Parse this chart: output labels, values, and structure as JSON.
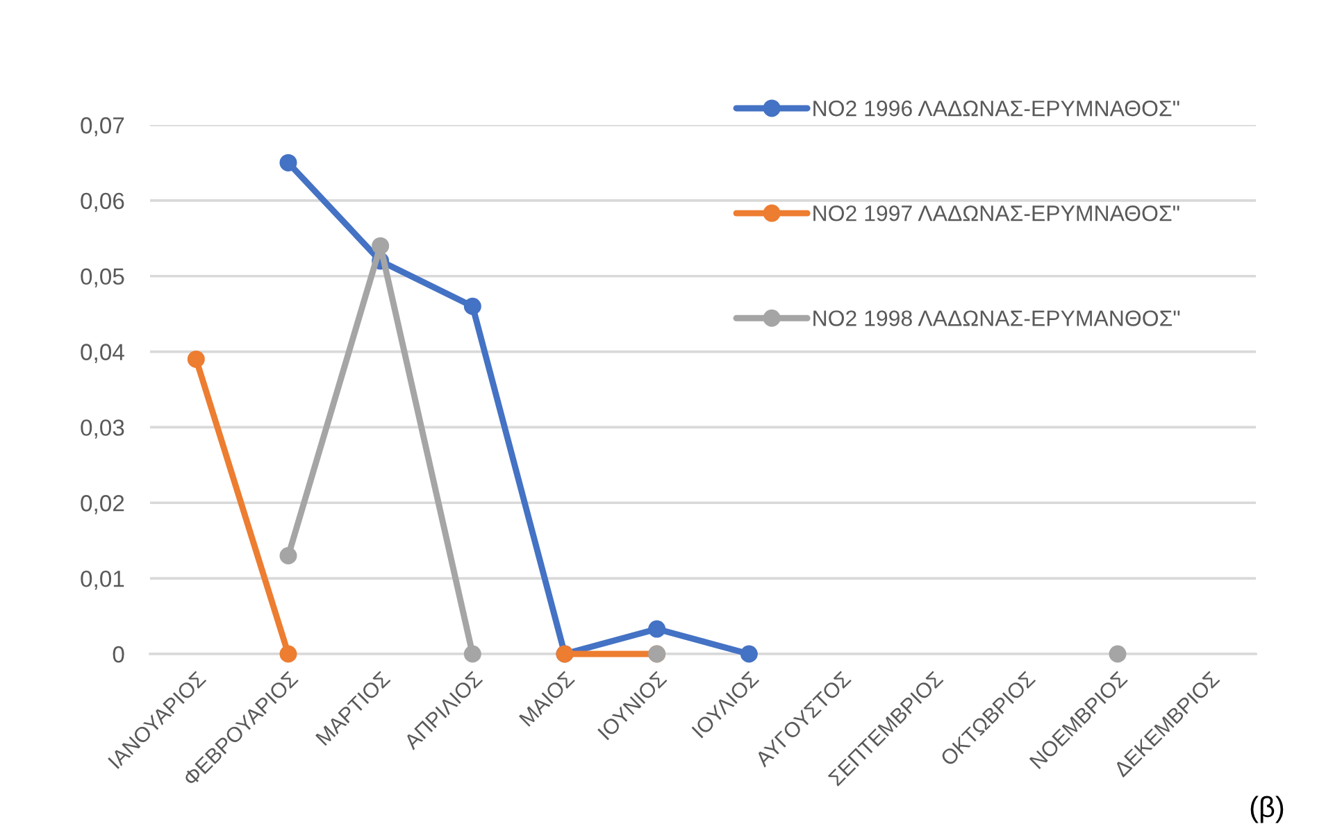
{
  "chart_data": {
    "type": "line",
    "categories": [
      "ΙΑΝΟΥΑΡΙΟΣ",
      "ΦΕΒΡΟΥΑΡΙΟΣ",
      "ΜΑΡΤΙΟΣ",
      "ΑΠΡΙΛΙΟΣ",
      "ΜΑΙΟΣ",
      "ΙΟΥΝΙΟΣ",
      "ΙΟΥΛΙΟΣ",
      "ΑΥΓΟΥΣΤΟΣ",
      "ΣΕΠΤΕΜΒΡΙΟΣ",
      "ΟΚΤΩΒΡΙΟΣ",
      "ΝΟΕΜΒΡΙΟΣ",
      "ΔΕΚΕΜΒΡΙΟΣ"
    ],
    "ylim": [
      0,
      0.07
    ],
    "yticks": [
      0,
      {
        "value": 0.01,
        "label": "0,01"
      },
      {
        "value": 0.02,
        "label": "0,02"
      },
      {
        "value": 0.03,
        "label": "0,03"
      },
      {
        "value": 0.04,
        "label": "0,04"
      },
      {
        "value": 0.05,
        "label": "0,05"
      },
      {
        "value": 0.06,
        "label": "0,06"
      },
      {
        "value": 0.07,
        "label": "0,07"
      }
    ],
    "grid": "y",
    "legend": "top right",
    "marker": "circle",
    "line_style": "solid",
    "series": [
      {
        "name": "NO2 1996 ΛΑΔΩΝΑΣ-ΕΡΥΜΝΑΘΟΣ\"",
        "color": "#4472c4",
        "values": [
          null,
          0.065,
          0.052,
          0.046,
          0,
          0.0033,
          0,
          null,
          null,
          null,
          null,
          null
        ]
      },
      {
        "name": "NO2 1997 ΛΑΔΩΝΑΣ-ΕΡΥΜΝΑΘΟΣ\"",
        "color": "#ed7d31",
        "values": [
          0.039,
          0,
          null,
          null,
          0,
          0,
          null,
          null,
          null,
          null,
          null,
          null
        ]
      },
      {
        "name": "NO2 1998 ΛΑΔΩΝΑΣ-ΕΡΥΜΑΝΘΟΣ\"",
        "color": "#a5a5a5",
        "values": [
          null,
          0.013,
          0.054,
          0,
          null,
          0,
          null,
          null,
          null,
          null,
          0,
          null
        ]
      }
    ],
    "annotations": [
      "(β)"
    ]
  }
}
